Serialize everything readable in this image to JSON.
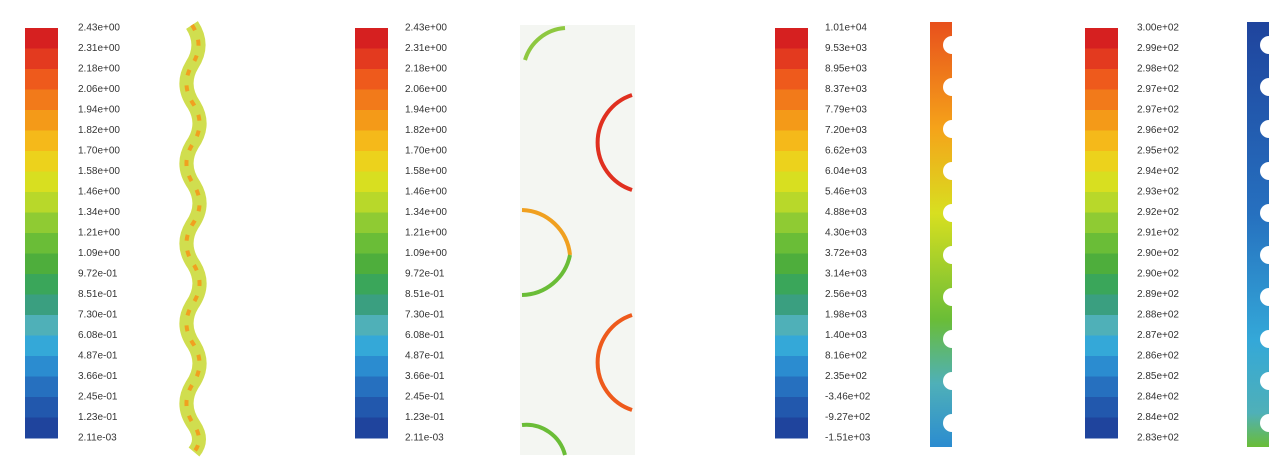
{
  "panels": [
    {
      "legend_labels": [
        "2.43e+00",
        "2.31e+00",
        "2.18e+00",
        "2.06e+00",
        "1.94e+00",
        "1.82e+00",
        "1.70e+00",
        "1.58e+00",
        "1.46e+00",
        "1.34e+00",
        "1.21e+00",
        "1.09e+00",
        "9.72e-01",
        "8.51e-01",
        "7.30e-01",
        "6.08e-01",
        "4.87e-01",
        "3.66e-01",
        "2.45e-01",
        "1.23e-01",
        "2.11e-03"
      ]
    },
    {
      "legend_labels": [
        "2.43e+00",
        "2.31e+00",
        "2.18e+00",
        "2.06e+00",
        "1.94e+00",
        "1.82e+00",
        "1.70e+00",
        "1.58e+00",
        "1.46e+00",
        "1.34e+00",
        "1.21e+00",
        "1.09e+00",
        "9.72e-01",
        "8.51e-01",
        "7.30e-01",
        "6.08e-01",
        "4.87e-01",
        "3.66e-01",
        "2.45e-01",
        "1.23e-01",
        "2.11e-03"
      ]
    },
    {
      "legend_labels": [
        "1.01e+04",
        "9.53e+03",
        "8.95e+03",
        "8.37e+03",
        "7.79e+03",
        "7.20e+03",
        "6.62e+03",
        "6.04e+03",
        "5.46e+03",
        "4.88e+03",
        "4.30e+03",
        "3.72e+03",
        "3.14e+03",
        "2.56e+03",
        "1.98e+03",
        "1.40e+03",
        "8.16e+02",
        "2.35e+02",
        "-3.46e+02",
        "-9.27e+02",
        "-1.51e+03"
      ]
    },
    {
      "legend_labels": [
        "3.00e+02",
        "2.99e+02",
        "2.98e+02",
        "2.97e+02",
        "2.97e+02",
        "2.96e+02",
        "2.95e+02",
        "2.94e+02",
        "2.93e+02",
        "2.92e+02",
        "2.91e+02",
        "2.90e+02",
        "2.90e+02",
        "2.89e+02",
        "2.88e+02",
        "2.87e+02",
        "2.86e+02",
        "2.85e+02",
        "2.84e+02",
        "2.84e+02",
        "2.83e+02"
      ]
    }
  ]
}
